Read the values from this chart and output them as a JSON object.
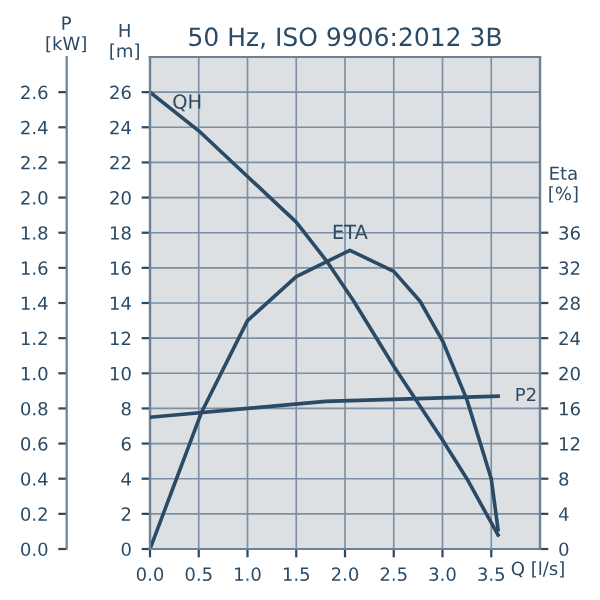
{
  "chart_data": {
    "type": "line",
    "title": "50 Hz, ISO 9906:2012 3B",
    "xlabel": "Q [l/s]",
    "ylabel": "H\n[m]",
    "y2label": "Eta\n[%]",
    "y3label": "P\n[kW]",
    "x": [
      0,
      0.5,
      1.0,
      1.5,
      1.81,
      2.09,
      2.5,
      3.0,
      3.25,
      3.57
    ],
    "series": [
      {
        "name": "QH",
        "color": "#2a4a65",
        "axis": "y",
        "values": [
          26,
          23.8,
          21.2,
          18.6,
          16.4,
          14.1,
          10.4,
          6.2,
          4.0,
          0.8
        ]
      },
      {
        "name": "ETA",
        "color": "#2a4a65",
        "axis": "y2",
        "x": [
          0,
          0.53,
          1.0,
          1.5,
          2.05,
          2.5,
          2.77,
          3.0,
          3.25,
          3.5,
          3.57
        ],
        "values": [
          0,
          15.6,
          26,
          31,
          34,
          31.6,
          28.2,
          23.7,
          17,
          8,
          2.2
        ]
      },
      {
        "name": "P2",
        "color": "#2a4a65",
        "axis": "y3",
        "x": [
          0,
          1.8,
          3.57
        ],
        "values": [
          0.75,
          0.84,
          0.87
        ]
      }
    ],
    "xlim": [
      0,
      4.0
    ],
    "xticks": [
      {
        "value": 0,
        "label": "0.0"
      },
      0.5,
      {
        "value": 1,
        "label": "1.0"
      },
      1.5,
      {
        "value": 2,
        "label": "2.0"
      },
      2.5,
      {
        "value": 3,
        "label": "3.0"
      },
      3.5
    ],
    "ylim": [
      0,
      28
    ],
    "yticks": [
      0,
      2,
      4,
      6,
      8,
      10,
      12,
      14,
      16,
      18,
      20,
      22,
      24,
      26
    ],
    "y2lim": [
      0,
      56
    ],
    "y2ticks": [
      0,
      4,
      8,
      12,
      16,
      20,
      24,
      28,
      32,
      36
    ],
    "y3lim": [
      0,
      2.8
    ],
    "y3ticks": [
      {
        "value": 0,
        "label": "0.0"
      },
      0.2,
      0.4,
      0.6,
      0.8,
      {
        "value": 1,
        "label": "1.0"
      },
      1.2,
      1.4,
      1.6,
      1.8,
      {
        "value": 2,
        "label": "2.0"
      },
      2.2,
      2.4,
      2.6
    ],
    "grid": true,
    "legend": false,
    "marker": "none",
    "line_style": "solid"
  }
}
